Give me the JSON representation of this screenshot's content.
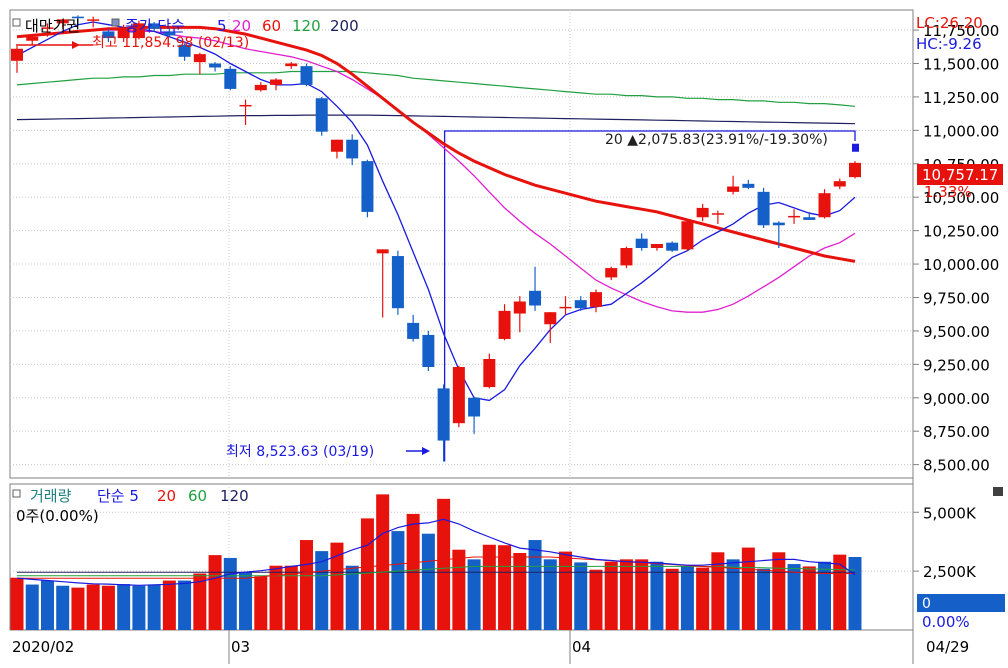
{
  "colors": {
    "up": "#e8120c",
    "down": "#1560c8",
    "ma5": "#1a1ae0",
    "ma20": "#e020d0",
    "ma60": "#20a040",
    "ma120": "#202080",
    "ma200": "#202060",
    "highlight_bg": "#e8120c",
    "volume_blue_bg": "#1560c8",
    "grid": "#c8c8c8",
    "frame": "#808080"
  },
  "chart_data": [
    {
      "type": "candlestick",
      "title": "대만가권",
      "legend": {
        "price_type": "종가 단순",
        "periods": [
          "5",
          "20",
          "60",
          "120",
          "200"
        ]
      },
      "lc_label": "LC:26.20",
      "hc_label": "HC:-9.26",
      "ylim": [
        8400,
        11900
      ],
      "yticks": [
        "11,750.00",
        "11,500.00",
        "11,250.00",
        "11,000.00",
        "10,750.00",
        "10,500.00",
        "10,250.00",
        "10,000.00",
        "9,750.00",
        "9,500.00",
        "9,250.00",
        "9,000.00",
        "8,750.00",
        "8,500.00"
      ],
      "current_price_label": "10,757.17",
      "current_change_label": "1.33%",
      "high_annotation": "최고 11,854.98 (02/13)",
      "low_annotation": "최저 8,523.63 (03/19)",
      "range_annotation": "20 ▲2,075.83(23.91%/-19.30%)",
      "range_box": {
        "low": 8523.63,
        "high": 10995
      },
      "candles": [
        {
          "o": 11520,
          "h": 11630,
          "l": 11430,
          "c": 11610
        },
        {
          "o": 11670,
          "h": 11720,
          "l": 11640,
          "c": 11700
        },
        {
          "o": 11760,
          "h": 11800,
          "l": 11700,
          "c": 11770
        },
        {
          "o": 11800,
          "h": 11830,
          "l": 11760,
          "c": 11830
        },
        {
          "o": 11850,
          "h": 11860,
          "l": 11790,
          "c": 11840
        },
        {
          "o": 11820,
          "h": 11850,
          "l": 11770,
          "c": 11830
        },
        {
          "o": 11740,
          "h": 11760,
          "l": 11660,
          "c": 11690
        },
        {
          "o": 11690,
          "h": 11790,
          "l": 11660,
          "c": 11770
        },
        {
          "o": 11690,
          "h": 11820,
          "l": 11680,
          "c": 11800
        },
        {
          "o": 11800,
          "h": 11810,
          "l": 11740,
          "c": 11760
        },
        {
          "o": 11740,
          "h": 11760,
          "l": 11700,
          "c": 11710
        },
        {
          "o": 11640,
          "h": 11650,
          "l": 11520,
          "c": 11550
        },
        {
          "o": 11510,
          "h": 11580,
          "l": 11420,
          "c": 11570
        },
        {
          "o": 11500,
          "h": 11510,
          "l": 11440,
          "c": 11470
        },
        {
          "o": 11460,
          "h": 11480,
          "l": 11300,
          "c": 11310
        },
        {
          "o": 11190,
          "h": 11230,
          "l": 11040,
          "c": 11190
        },
        {
          "o": 11300,
          "h": 11360,
          "l": 11290,
          "c": 11340
        },
        {
          "o": 11340,
          "h": 11390,
          "l": 11300,
          "c": 11380
        },
        {
          "o": 11480,
          "h": 11510,
          "l": 11460,
          "c": 11500
        },
        {
          "o": 11480,
          "h": 11500,
          "l": 11330,
          "c": 11340
        },
        {
          "o": 11240,
          "h": 11250,
          "l": 10960,
          "c": 10990
        },
        {
          "o": 10840,
          "h": 10930,
          "l": 10790,
          "c": 10930
        },
        {
          "o": 10930,
          "h": 10970,
          "l": 10740,
          "c": 10790
        },
        {
          "o": 10770,
          "h": 10780,
          "l": 10350,
          "c": 10390
        },
        {
          "o": 10080,
          "h": 10110,
          "l": 9600,
          "c": 10110
        },
        {
          "o": 10060,
          "h": 10100,
          "l": 9620,
          "c": 9670
        },
        {
          "o": 9560,
          "h": 9620,
          "l": 9420,
          "c": 9440
        },
        {
          "o": 9470,
          "h": 9500,
          "l": 9200,
          "c": 9230
        },
        {
          "o": 9070,
          "h": 9100,
          "l": 8523,
          "c": 8680
        },
        {
          "o": 8810,
          "h": 9240,
          "l": 8780,
          "c": 9230
        },
        {
          "o": 9000,
          "h": 9010,
          "l": 8730,
          "c": 8860
        },
        {
          "o": 9080,
          "h": 9330,
          "l": 9070,
          "c": 9290
        },
        {
          "o": 9440,
          "h": 9700,
          "l": 9430,
          "c": 9650
        },
        {
          "o": 9630,
          "h": 9760,
          "l": 9490,
          "c": 9720
        },
        {
          "o": 9800,
          "h": 9980,
          "l": 9650,
          "c": 9690
        },
        {
          "o": 9550,
          "h": 9640,
          "l": 9410,
          "c": 9640
        },
        {
          "o": 9680,
          "h": 9760,
          "l": 9620,
          "c": 9680
        },
        {
          "o": 9730,
          "h": 9760,
          "l": 9650,
          "c": 9670
        },
        {
          "o": 9680,
          "h": 9810,
          "l": 9640,
          "c": 9790
        },
        {
          "o": 9900,
          "h": 9980,
          "l": 9880,
          "c": 9970
        },
        {
          "o": 9990,
          "h": 10130,
          "l": 9970,
          "c": 10120
        },
        {
          "o": 10190,
          "h": 10230,
          "l": 10100,
          "c": 10120
        },
        {
          "o": 10120,
          "h": 10150,
          "l": 10100,
          "c": 10150
        },
        {
          "o": 10160,
          "h": 10170,
          "l": 10090,
          "c": 10100
        },
        {
          "o": 10110,
          "h": 10330,
          "l": 10100,
          "c": 10320
        },
        {
          "o": 10350,
          "h": 10450,
          "l": 10320,
          "c": 10420
        },
        {
          "o": 10370,
          "h": 10400,
          "l": 10300,
          "c": 10380
        },
        {
          "o": 10540,
          "h": 10660,
          "l": 10520,
          "c": 10580
        },
        {
          "o": 10600,
          "h": 10630,
          "l": 10560,
          "c": 10570
        },
        {
          "o": 10540,
          "h": 10570,
          "l": 10270,
          "c": 10290
        },
        {
          "o": 10310,
          "h": 10320,
          "l": 10120,
          "c": 10290
        },
        {
          "o": 10360,
          "h": 10410,
          "l": 10300,
          "c": 10360
        },
        {
          "o": 10350,
          "h": 10390,
          "l": 10330,
          "c": 10330
        },
        {
          "o": 10350,
          "h": 10560,
          "l": 10340,
          "c": 10530
        },
        {
          "o": 10580,
          "h": 10640,
          "l": 10560,
          "c": 10620
        },
        {
          "o": 10650,
          "h": 10770,
          "l": 10640,
          "c": 10757
        }
      ],
      "last_point": 10870,
      "ma5": [
        11560,
        11620,
        11680,
        11740,
        11790,
        11810,
        11790,
        11770,
        11760,
        11740,
        11700,
        11660,
        11620,
        11570,
        11500,
        11440,
        11380,
        11340,
        11340,
        11350,
        11290,
        11180,
        11060,
        10890,
        10620,
        10370,
        10090,
        9810,
        9480,
        9210,
        9000,
        8980,
        9060,
        9240,
        9370,
        9510,
        9620,
        9660,
        9680,
        9700,
        9780,
        9860,
        9950,
        10050,
        10100,
        10180,
        10240,
        10300,
        10380,
        10440,
        10460,
        10420,
        10380,
        10360,
        10400,
        10500
      ],
      "ma20": [
        11700,
        11710,
        11720,
        11730,
        11740,
        11750,
        11750,
        11750,
        11740,
        11740,
        11720,
        11700,
        11690,
        11670,
        11640,
        11610,
        11590,
        11570,
        11550,
        11520,
        11480,
        11440,
        11380,
        11310,
        11240,
        11150,
        11060,
        10970,
        10870,
        10770,
        10660,
        10540,
        10420,
        10320,
        10230,
        10150,
        10060,
        9970,
        9880,
        9820,
        9770,
        9720,
        9680,
        9650,
        9640,
        9640,
        9660,
        9700,
        9760,
        9830,
        9900,
        9980,
        10060,
        10120,
        10160,
        10230
      ],
      "ma60": [
        11340,
        11350,
        11360,
        11370,
        11380,
        11390,
        11390,
        11400,
        11400,
        11410,
        11410,
        11420,
        11420,
        11420,
        11430,
        11430,
        11430,
        11430,
        11440,
        11440,
        11440,
        11440,
        11440,
        11430,
        11420,
        11410,
        11390,
        11380,
        11370,
        11360,
        11350,
        11340,
        11330,
        11320,
        11310,
        11300,
        11290,
        11280,
        11270,
        11270,
        11260,
        11260,
        11250,
        11250,
        11240,
        11240,
        11230,
        11230,
        11220,
        11220,
        11210,
        11210,
        11200,
        11200,
        11190,
        11180
      ],
      "ma120": [
        11700,
        11710,
        11720,
        11730,
        11740,
        11750,
        11760,
        11760,
        11770,
        11770,
        11770,
        11770,
        11770,
        11760,
        11740,
        11720,
        11690,
        11660,
        11630,
        11600,
        11560,
        11500,
        11420,
        11330,
        11240,
        11150,
        11060,
        10980,
        10900,
        10830,
        10770,
        10720,
        10670,
        10630,
        10590,
        10560,
        10530,
        10500,
        10470,
        10450,
        10430,
        10410,
        10390,
        10360,
        10330,
        10300,
        10270,
        10240,
        10210,
        10180,
        10150,
        10120,
        10090,
        10060,
        10040,
        10020
      ],
      "ma200": [
        11080,
        11082,
        11084,
        11086,
        11088,
        11090,
        11092,
        11094,
        11096,
        11098,
        11100,
        11102,
        11104,
        11106,
        11108,
        11110,
        11110,
        11112,
        11112,
        11114,
        11114,
        11114,
        11114,
        11114,
        11112,
        11110,
        11108,
        11106,
        11104,
        11102,
        11100,
        11098,
        11096,
        11094,
        11092,
        11090,
        11088,
        11086,
        11084,
        11082,
        11080,
        11078,
        11076,
        11074,
        11072,
        11070,
        11068,
        11066,
        11064,
        11062,
        11060,
        11058,
        11056,
        11054,
        11052,
        11050
      ]
    },
    {
      "type": "bar",
      "title": "거래량",
      "legend": {
        "price_type": "단순",
        "periods": [
          "5",
          "20",
          "60",
          "120"
        ]
      },
      "zero_label": "0주(0.00%)",
      "ylim": [
        0,
        6200
      ],
      "yticks": [
        "5,000K",
        "2,500K"
      ],
      "side_value": "0",
      "side_pct": "0.00%",
      "bars": [
        2220,
        1930,
        2100,
        1880,
        1800,
        1930,
        1880,
        1950,
        1880,
        1930,
        2100,
        2100,
        2400,
        3180,
        3060,
        2450,
        2280,
        2730,
        2730,
        3820,
        3350,
        3710,
        2730,
        4740,
        5760,
        4200,
        4930,
        4090,
        5570,
        3410,
        3000,
        3620,
        3600,
        3270,
        3820,
        3000,
        3330,
        2870,
        2560,
        2900,
        3000,
        3000,
        2900,
        2600,
        2700,
        2650,
        3300,
        3000,
        3500,
        2600,
        3300,
        2800,
        2700,
        2900,
        3200,
        3100
      ],
      "up": [
        1,
        0,
        0,
        0,
        1,
        1,
        1,
        0,
        0,
        0,
        1,
        0,
        1,
        1,
        0,
        0,
        1,
        1,
        1,
        1,
        0,
        1,
        0,
        1,
        1,
        0,
        1,
        0,
        1,
        1,
        0,
        1,
        1,
        1,
        0,
        0,
        1,
        0,
        1,
        1,
        1,
        1,
        0,
        1,
        0,
        1,
        1,
        0,
        1,
        0,
        1,
        0,
        1,
        0,
        1,
        0
      ],
      "ma5": [
        2200,
        2150,
        2100,
        2050,
        2000,
        1960,
        1950,
        1920,
        1900,
        1920,
        1940,
        1980,
        2050,
        2200,
        2380,
        2460,
        2520,
        2600,
        2700,
        2780,
        2900,
        3150,
        3400,
        3600,
        4100,
        4350,
        4500,
        4550,
        4700,
        4500,
        4200,
        3950,
        3700,
        3480,
        3400,
        3320,
        3200,
        3100,
        3000,
        2950,
        2900,
        2880,
        2850,
        2800,
        2750,
        2750,
        2800,
        2850,
        2900,
        2950,
        3000,
        3000,
        2900,
        2850,
        2800,
        2350
      ]
    }
  ],
  "x_axis": [
    "2020/02",
    "03",
    "04",
    "04/29"
  ]
}
